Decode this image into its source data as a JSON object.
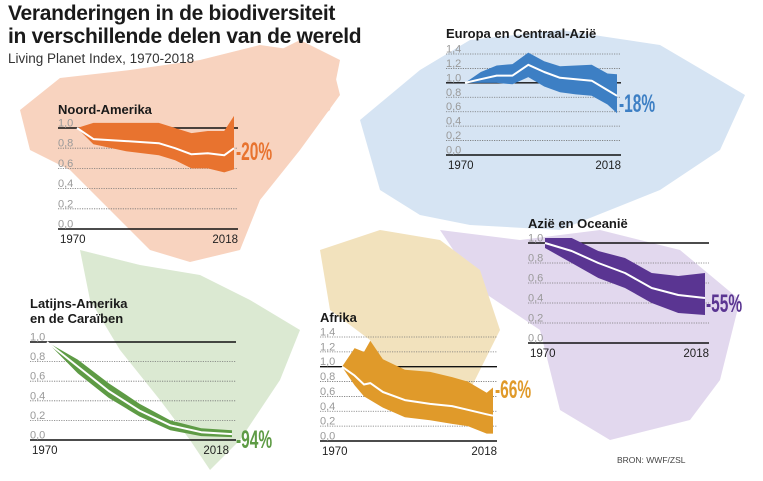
{
  "header": {
    "title_line1": "Veranderingen in de biodiversiteit",
    "title_line2": "in verschillende delen van de wereld",
    "subtitle": "Living Planet Index, 1970-2018"
  },
  "source": "BRON: WWF/ZSL",
  "chart_data": [
    {
      "type": "area",
      "title": "Noord-Amerika",
      "color": "#e8732f",
      "map_color": "#f8d3bf",
      "change_label": "-20%",
      "x_tick_labels": [
        "1970",
        "2018"
      ],
      "y_tick_labels": [
        "0,0",
        "0,2",
        "0,4",
        "0,6",
        "0,8",
        "1,0"
      ],
      "ylim": [
        0,
        1.0
      ],
      "x": [
        1970,
        1975,
        1985,
        1995,
        2000,
        2005,
        2010,
        2015,
        2018
      ],
      "index": [
        1.0,
        0.89,
        0.87,
        0.85,
        0.8,
        0.74,
        0.75,
        0.73,
        0.8
      ],
      "upper": [
        1.0,
        1.05,
        1.05,
        1.05,
        1.0,
        0.95,
        0.97,
        0.97,
        1.12
      ],
      "lower": [
        1.0,
        0.84,
        0.77,
        0.73,
        0.68,
        0.6,
        0.6,
        0.56,
        0.59
      ]
    },
    {
      "type": "area",
      "title": "Europa en Centraal-Azië",
      "color": "#3d7fc4",
      "map_color": "#d6e4f3",
      "change_label": "-18%",
      "x_tick_labels": [
        "1970",
        "2018"
      ],
      "y_tick_labels": [
        "0,0",
        "0,2",
        "0,4",
        "0,6",
        "0,8",
        "1,0",
        "1,2",
        "1,4"
      ],
      "ylim": [
        0,
        1.4
      ],
      "x": [
        1970,
        1975,
        1980,
        1985,
        1990,
        1995,
        2000,
        2005,
        2010,
        2015,
        2018
      ],
      "index": [
        1.0,
        1.05,
        1.1,
        1.1,
        1.25,
        1.15,
        1.07,
        1.05,
        1.03,
        0.9,
        0.82
      ],
      "upper": [
        1.0,
        1.15,
        1.24,
        1.26,
        1.42,
        1.3,
        1.23,
        1.24,
        1.25,
        1.13,
        1.12
      ],
      "lower": [
        1.0,
        1.0,
        1.0,
        0.98,
        1.08,
        0.95,
        0.87,
        0.84,
        0.82,
        0.7,
        0.58
      ]
    },
    {
      "type": "area",
      "title": "Azië en Oceanië",
      "color": "#5a3592",
      "map_color": "#e2d8ee",
      "change_label": "-55%",
      "x_tick_labels": [
        "1970",
        "2018"
      ],
      "y_tick_labels": [
        "0,0",
        "0,2",
        "0,4",
        "0,6",
        "0,8",
        "1,0"
      ],
      "ylim": [
        0,
        1.0
      ],
      "x": [
        1970,
        1978,
        1986,
        1994,
        2002,
        2010,
        2018
      ],
      "index": [
        1.0,
        0.92,
        0.8,
        0.7,
        0.55,
        0.48,
        0.45
      ],
      "upper": [
        1.05,
        1.05,
        0.92,
        0.85,
        0.7,
        0.67,
        0.7
      ],
      "lower": [
        0.95,
        0.8,
        0.65,
        0.55,
        0.4,
        0.3,
        0.28
      ]
    },
    {
      "type": "area",
      "title": "Latijns-Amerika en de Caraïben",
      "title_lines": [
        "Latijns-Amerika",
        "en de Caraïben"
      ],
      "color": "#5e9b45",
      "map_color": "#dbe9d2",
      "change_label": "-94%",
      "x_tick_labels": [
        "1970",
        "2018"
      ],
      "y_tick_labels": [
        "0,0",
        "0,2",
        "0,4",
        "0,6",
        "0,8",
        "1,0"
      ],
      "ylim": [
        0,
        1.0
      ],
      "x": [
        1970,
        1978,
        1986,
        1994,
        2002,
        2010,
        2018
      ],
      "index": [
        1.0,
        0.75,
        0.5,
        0.3,
        0.15,
        0.08,
        0.06
      ],
      "upper": [
        1.0,
        0.82,
        0.58,
        0.37,
        0.2,
        0.12,
        0.1
      ],
      "lower": [
        1.0,
        0.68,
        0.43,
        0.24,
        0.1,
        0.04,
        0.03
      ]
    },
    {
      "type": "area",
      "title": "Afrika",
      "color": "#e09a2a",
      "map_color": "#f2e2bd",
      "change_label": "-66%",
      "x_tick_labels": [
        "1970",
        "2018"
      ],
      "y_tick_labels": [
        "0,0",
        "0,2",
        "0,4",
        "0,6",
        "0,8",
        "1,0",
        "1,2",
        "1,4"
      ],
      "ylim": [
        0,
        1.4
      ],
      "x": [
        1970,
        1974,
        1977,
        1979,
        1983,
        1990,
        1998,
        2005,
        2010,
        2016,
        2018
      ],
      "index": [
        1.0,
        0.88,
        0.76,
        0.78,
        0.66,
        0.55,
        0.5,
        0.47,
        0.42,
        0.36,
        0.34
      ],
      "upper": [
        1.0,
        1.25,
        1.2,
        1.35,
        1.1,
        0.96,
        0.93,
        0.86,
        0.8,
        0.65,
        0.72
      ],
      "lower": [
        1.0,
        0.75,
        0.6,
        0.55,
        0.45,
        0.32,
        0.28,
        0.23,
        0.2,
        0.1,
        0.1
      ]
    }
  ]
}
